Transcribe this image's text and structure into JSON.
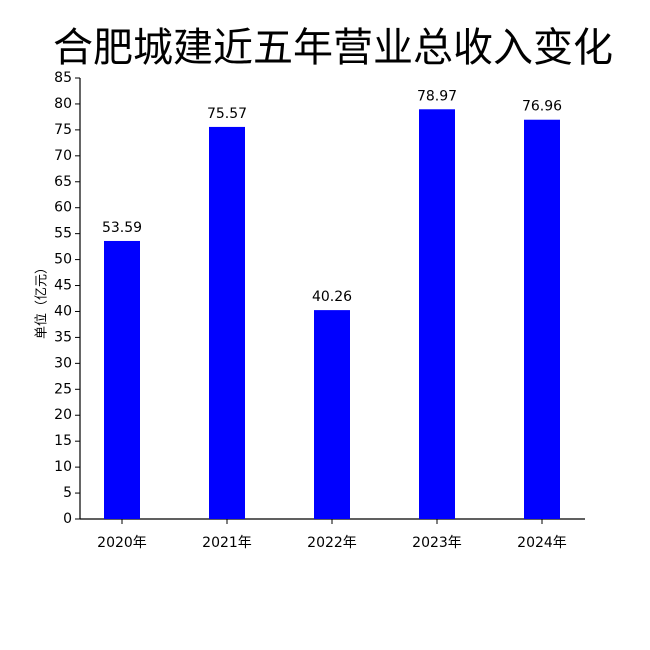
{
  "chart_data": {
    "type": "bar",
    "title": "合肥城建近五年营业总收入变化",
    "y_label": "单位（亿元）",
    "categories": [
      "2020年",
      "2021年",
      "2022年",
      "2023年",
      "2024年"
    ],
    "values": [
      53.59,
      75.57,
      40.26,
      78.97,
      76.96
    ],
    "color": "#0000ff",
    "ylim": [
      0,
      85
    ],
    "yticks": [
      0,
      5,
      10,
      15,
      20,
      25,
      30,
      35,
      40,
      45,
      50,
      55,
      60,
      65,
      70,
      75,
      80,
      85
    ],
    "grid": false
  }
}
